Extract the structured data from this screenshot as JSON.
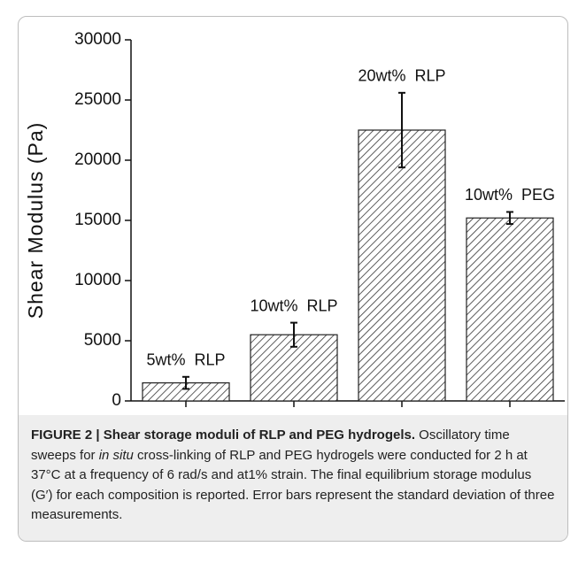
{
  "chart_data": {
    "type": "bar",
    "ylabel": "Shear Modulus (Pa)",
    "categories": [
      "5wt%  RLP",
      "10wt%  RLP",
      "20wt%  RLP",
      "10wt%  PEG"
    ],
    "values": [
      1500,
      5500,
      22500,
      15200
    ],
    "errors": [
      500,
      1000,
      3100,
      500
    ],
    "ylim": [
      0,
      30000
    ],
    "yticks": [
      0,
      5000,
      10000,
      15000,
      20000,
      25000,
      30000
    ]
  },
  "caption": {
    "title": "FIGURE 2 | Shear storage moduli of RLP and PEG hydrogels.",
    "text_before": "Oscillatory time sweeps for ",
    "italic": "in situ",
    "text_after": " cross-linking of RLP and PEG hydrogels were conducted for 2 h at 37°C at a frequency of 6 rad/s and at1% strain. The final equilibrium storage modulus (G′) for each composition is reported. Error bars represent the standard deviation of three measurements."
  }
}
